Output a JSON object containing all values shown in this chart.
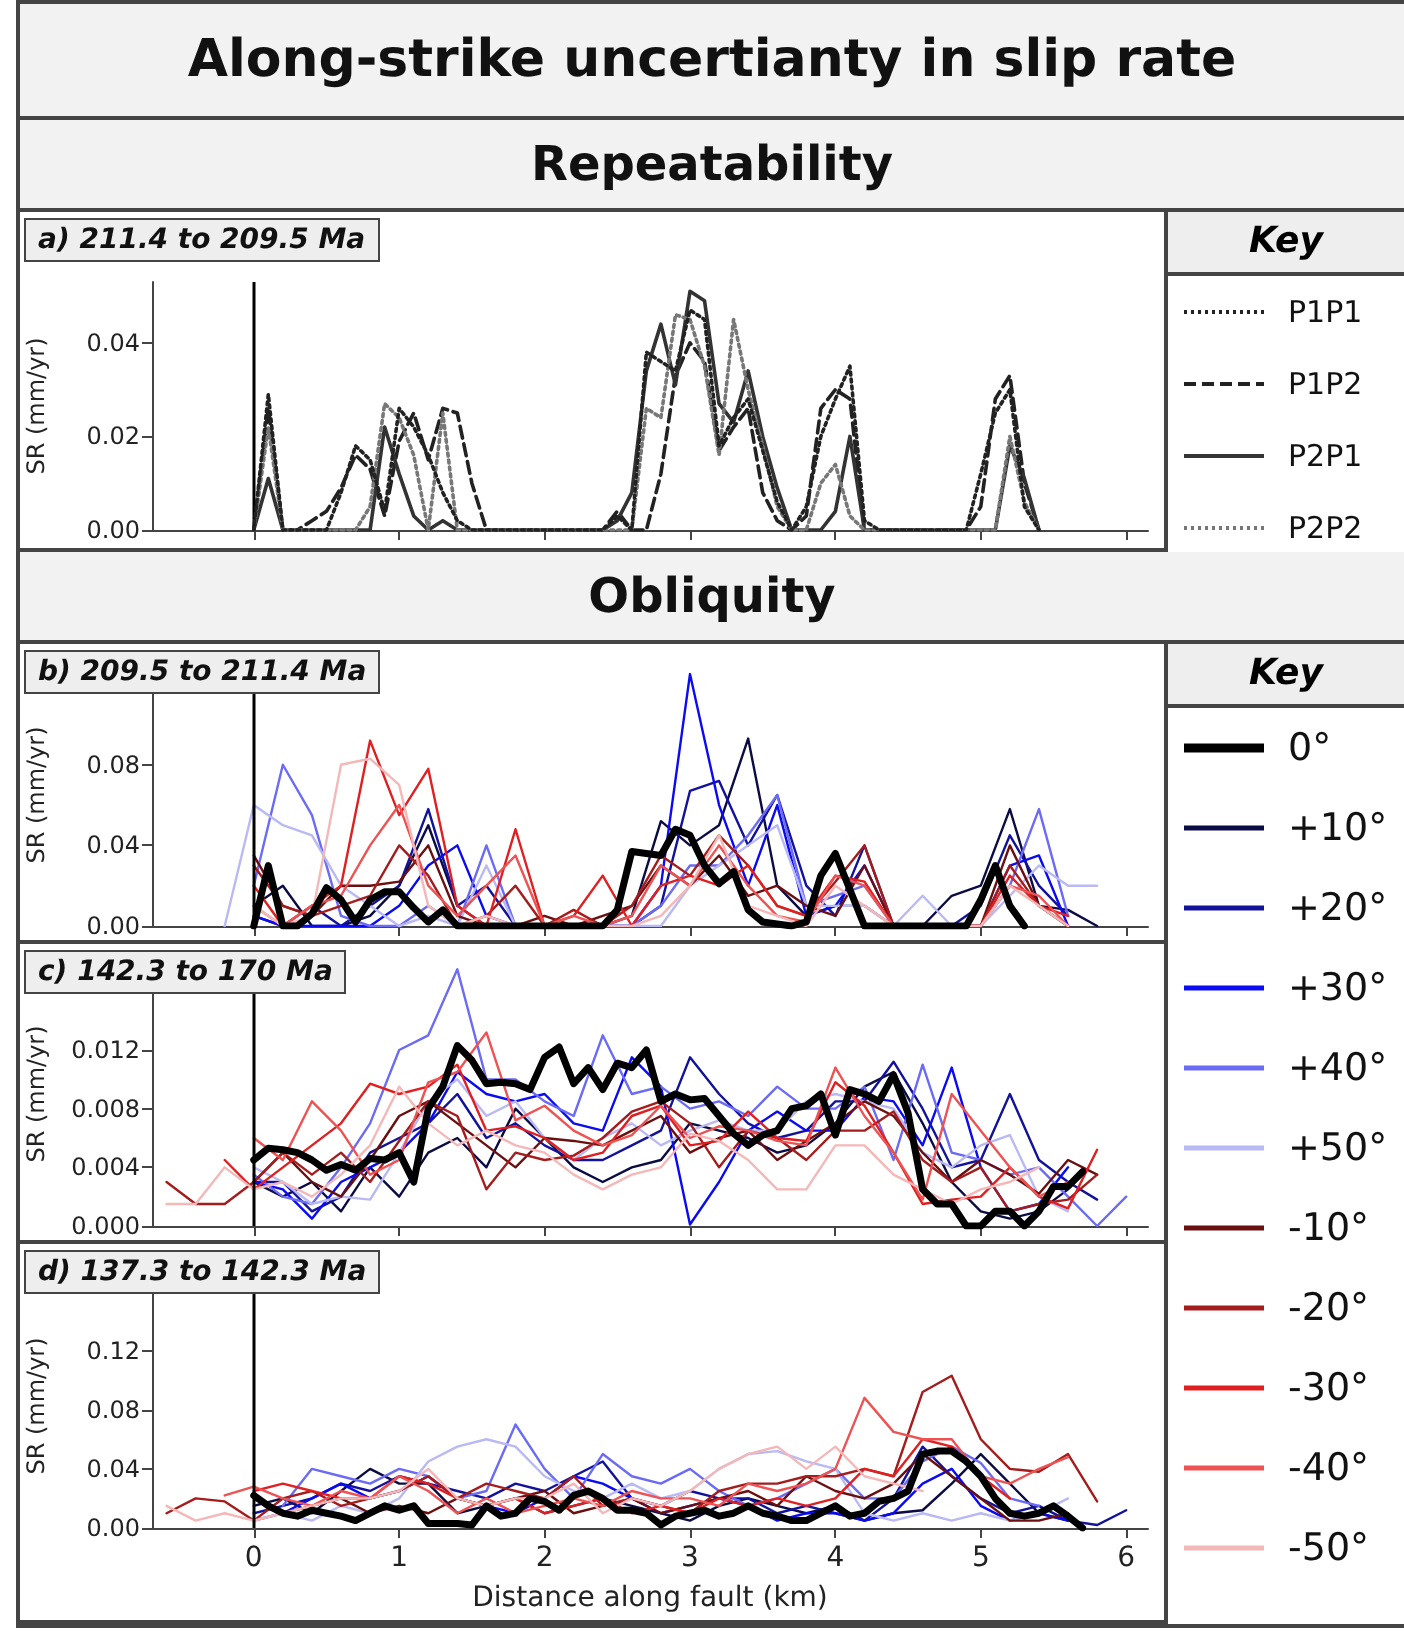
{
  "chart_data": [
    {
      "type": "line",
      "title": "a) 211.4 to 209.5 Ma",
      "ylabel": "SR (mm/yr)",
      "legend_title": "Key",
      "annotations": [
        "Along-strike uncertianty in slip rate",
        "Repeatability"
      ],
      "legend": "right",
      "grid": false,
      "tick_labels": "y",
      "x": [
        0,
        0.1,
        0.2,
        0.3,
        0.4,
        0.5,
        0.6,
        0.7,
        0.8,
        0.9,
        1,
        1.1,
        1.2,
        1.3,
        1.4,
        1.5,
        1.6,
        1.7,
        1.8,
        1.9,
        2,
        2.1,
        2.2,
        2.3,
        2.4,
        2.5,
        2.6,
        2.7,
        2.8,
        2.9,
        3,
        3.1,
        3.2,
        3.3,
        3.4,
        3.5,
        3.6,
        3.7,
        3.8,
        3.9,
        4,
        4.1,
        4.2,
        4.3,
        4.4,
        4.5,
        4.6,
        4.7,
        4.8,
        4.9,
        5,
        5.1,
        5.2,
        5.3,
        5.4
      ],
      "xlim": [
        -0.7,
        6.15
      ],
      "xticks": [
        0,
        1,
        2,
        3,
        4,
        5,
        6
      ],
      "ylim": [
        0,
        0.053
      ],
      "yticks": [
        {
          "value": 0,
          "label": "0.00"
        },
        {
          "value": 0.02,
          "label": "0.02"
        },
        {
          "value": 0.04,
          "label": "0.04"
        }
      ],
      "ref_lines": [
        {
          "axis": "x",
          "value": 0,
          "color": "#000000"
        }
      ],
      "series": [
        {
          "name": "P1P1",
          "color": "#222222",
          "line_style": "dotted",
          "values": [
            0,
            0.029,
            0,
            0,
            0,
            0,
            0.008,
            0.018,
            0.015,
            0.004,
            0.026,
            0.022,
            0.016,
            0.008,
            0.002,
            0,
            0,
            0,
            0,
            0,
            0,
            0,
            0,
            0,
            0,
            0.003,
            0,
            0.038,
            0.036,
            0.034,
            0.047,
            0.045,
            0.018,
            0.024,
            0.028,
            0.017,
            0.006,
            0,
            0.005,
            0.02,
            0.028,
            0.035,
            0.002,
            0,
            0,
            0,
            0,
            0,
            0,
            0,
            0.012,
            0.025,
            0.03,
            0.005,
            0
          ]
        },
        {
          "name": "P1P2",
          "color": "#222222",
          "line_style": "dashed",
          "values": [
            0,
            0.026,
            0,
            0,
            0.002,
            0.004,
            0.009,
            0.016,
            0.013,
            0.003,
            0.019,
            0.025,
            0.015,
            0.026,
            0.025,
            0.01,
            0,
            0,
            0,
            0,
            0,
            0,
            0,
            0,
            0,
            0.004,
            0,
            0,
            0.012,
            0.033,
            0.04,
            0.036,
            0.017,
            0.022,
            0.026,
            0.008,
            0.002,
            0,
            0.003,
            0.026,
            0.03,
            0.028,
            0,
            0,
            0,
            0,
            0,
            0,
            0,
            0,
            0.005,
            0.028,
            0.033,
            0.01,
            0
          ]
        },
        {
          "name": "P2P1",
          "color": "#333333",
          "line_style": "solid",
          "values": [
            0,
            0.011,
            0,
            0,
            0,
            0,
            0,
            0,
            0,
            0.022,
            0.012,
            0.003,
            0,
            0.002,
            0,
            0,
            0,
            0,
            0,
            0,
            0,
            0,
            0,
            0,
            0,
            0.002,
            0.008,
            0.034,
            0.044,
            0.031,
            0.051,
            0.049,
            0.027,
            0.023,
            0.034,
            0.02,
            0.009,
            0,
            0,
            0,
            0.004,
            0.02,
            0,
            0,
            0,
            0,
            0,
            0,
            0,
            0,
            0,
            0,
            0.018,
            0.011,
            0
          ]
        },
        {
          "name": "P2P2",
          "color": "#777777",
          "line_style": "dotted",
          "values": [
            0,
            0.022,
            0,
            0,
            0,
            0,
            0,
            0,
            0.005,
            0.027,
            0.024,
            0.016,
            0,
            0.025,
            0,
            0,
            0,
            0,
            0,
            0,
            0,
            0,
            0,
            0,
            0,
            0,
            0,
            0.026,
            0.024,
            0.046,
            0.045,
            0.035,
            0.016,
            0.045,
            0.03,
            0.018,
            0.005,
            0,
            0,
            0.01,
            0.014,
            0.003,
            0,
            0,
            0,
            0,
            0,
            0,
            0,
            0,
            0,
            0,
            0.02,
            0.006,
            0
          ]
        }
      ]
    },
    {
      "type": "line",
      "title": "b) 209.5 to 211.4 Ma",
      "ylabel": "SR (mm/yr)",
      "legend_title": "Key",
      "annotations": [
        "Obliquity"
      ],
      "legend": "right",
      "grid": false,
      "tick_labels": "y",
      "x": [
        -0.2,
        0,
        0.2,
        0.4,
        0.6,
        0.8,
        1,
        1.2,
        1.4,
        1.6,
        1.8,
        2,
        2.2,
        2.4,
        2.6,
        2.8,
        3,
        3.2,
        3.4,
        3.6,
        3.8,
        4,
        4.2,
        4.4,
        4.6,
        4.8,
        5,
        5.2,
        5.4,
        5.6,
        5.8
      ],
      "xlim": [
        -0.7,
        6.15
      ],
      "xticks": [
        0,
        1,
        2,
        3,
        4,
        5,
        6
      ],
      "ylim": [
        0,
        0.13
      ],
      "yticks": [
        {
          "value": 0,
          "label": "0.00"
        },
        {
          "value": 0.04,
          "label": "0.04"
        },
        {
          "value": 0.08,
          "label": "0.08"
        }
      ],
      "ref_lines": [
        {
          "axis": "x",
          "value": 0,
          "color": "#000000"
        }
      ],
      "series": [
        {
          "name": "0°",
          "color": "#000000",
          "x": [
            0,
            0.1,
            0.2,
            0.3,
            0.4,
            0.5,
            0.6,
            0.7,
            0.8,
            0.9,
            1,
            1.1,
            1.2,
            1.3,
            1.4,
            1.5,
            1.6,
            1.7,
            1.8,
            1.9,
            2,
            2.1,
            2.2,
            2.3,
            2.4,
            2.5,
            2.6,
            2.7,
            2.8,
            2.9,
            3,
            3.1,
            3.2,
            3.3,
            3.4,
            3.5,
            3.6,
            3.7,
            3.8,
            3.9,
            4,
            4.1,
            4.2,
            4.3,
            4.4,
            4.5,
            4.6,
            4.7,
            4.8,
            4.9,
            5,
            5.1,
            5.2,
            5.3
          ],
          "values": [
            0,
            0.03,
            0,
            0,
            0.006,
            0.019,
            0.013,
            0.002,
            0.013,
            0.017,
            0.017,
            0.009,
            0.002,
            0.008,
            0,
            0,
            0,
            0,
            0,
            0,
            0,
            0,
            0,
            0,
            0,
            0.008,
            0.037,
            0.036,
            0.035,
            0.048,
            0.045,
            0.03,
            0.021,
            0.027,
            0.008,
            0.002,
            0.001,
            0,
            0.002,
            0.025,
            0.036,
            0.018,
            0,
            0,
            0,
            0,
            0,
            0,
            0,
            0,
            0.013,
            0.03,
            0.01,
            0
          ]
        },
        {
          "name": "+10°",
          "color": "#0b0b45",
          "values": [
            null,
            0.01,
            0.02,
            0,
            0,
            0.005,
            0.02,
            0.05,
            0.01,
            0,
            0,
            0,
            0,
            0,
            0.005,
            0.052,
            0.04,
            0.05,
            0.093,
            0.02,
            0.005,
            0.01,
            0.01,
            0,
            0,
            0.015,
            0.02,
            0.058,
            0.01,
            0.008,
            0
          ]
        },
        {
          "name": "+20°",
          "color": "#12129a",
          "values": [
            null,
            0.005,
            0,
            0.01,
            0,
            0.01,
            0.02,
            0.058,
            0.01,
            0.02,
            0,
            0,
            0,
            0,
            0,
            0.01,
            0.067,
            0.072,
            0.04,
            0.065,
            0.02,
            0.005,
            0.04,
            0,
            0,
            0,
            0.01,
            0.045,
            0.02,
            0.005,
            null
          ]
        },
        {
          "name": "+30°",
          "color": "#0a0af5",
          "values": [
            null,
            0.005,
            0,
            0,
            0,
            0,
            0.01,
            0.03,
            0.04,
            0.005,
            0,
            0,
            0,
            0,
            0,
            0.02,
            0.125,
            0.06,
            0.02,
            0.06,
            0.005,
            0.01,
            0.03,
            0,
            0,
            0,
            0,
            0.03,
            0.035,
            0,
            null
          ]
        },
        {
          "name": "+40°",
          "color": "#6b6bf5",
          "values": [
            null,
            0.02,
            0.08,
            0.055,
            0.005,
            0,
            0,
            0.01,
            0,
            0.04,
            0,
            0,
            0,
            0,
            0,
            0.01,
            0.03,
            0.03,
            0.045,
            0.065,
            0.01,
            0.015,
            0.02,
            0,
            0,
            0,
            0,
            0.02,
            0.058,
            0.005,
            null
          ]
        },
        {
          "name": "+50°",
          "color": "#b9b9f5",
          "values": [
            0,
            0.06,
            0.05,
            0.045,
            0.02,
            0.01,
            0,
            0.005,
            0,
            0.03,
            0,
            0,
            0,
            0,
            0,
            0,
            0.02,
            0.03,
            0.04,
            0.05,
            0.01,
            0.01,
            0.01,
            0,
            0.015,
            0,
            0,
            0.015,
            0.03,
            0.02,
            0.02
          ]
        },
        {
          "name": "-10°",
          "color": "#6b1010",
          "values": [
            null,
            0.035,
            0.01,
            0.005,
            0.02,
            0.02,
            0.022,
            0.04,
            0.005,
            0,
            0,
            0.005,
            0,
            0.005,
            0.01,
            0.03,
            0.02,
            0.035,
            0.015,
            0.02,
            0.01,
            0.005,
            0.03,
            0,
            0,
            0,
            0,
            0.04,
            0.01,
            0,
            null
          ]
        },
        {
          "name": "-20°",
          "color": "#a51c1c",
          "values": [
            null,
            0.03,
            0.01,
            0.005,
            0.01,
            0.015,
            0.04,
            0.025,
            0,
            0.005,
            0.02,
            0,
            0.008,
            0,
            0.01,
            0.035,
            0.025,
            0.045,
            0.03,
            0.01,
            0.005,
            0.022,
            0.04,
            0,
            0,
            0,
            0,
            0.03,
            0.01,
            0,
            null
          ]
        },
        {
          "name": "-30°",
          "color": "#e02020",
          "values": [
            null,
            0.02,
            0,
            0.01,
            0.02,
            0.092,
            0.055,
            0.078,
            0.01,
            0,
            0.048,
            0,
            0.005,
            0.025,
            0,
            0.02,
            0.025,
            0.02,
            0.03,
            0.01,
            0.005,
            0.025,
            0.022,
            0,
            0,
            0,
            0,
            0.025,
            0.01,
            0.005,
            null
          ]
        },
        {
          "name": "-40°",
          "color": "#ee5252",
          "values": [
            null,
            0.01,
            0,
            0.01,
            0.015,
            0.04,
            0.06,
            0.02,
            0.005,
            0.02,
            0.035,
            0,
            0.005,
            0,
            0.005,
            0.03,
            0.02,
            0.04,
            0.02,
            0.005,
            0.002,
            0.025,
            0.02,
            0,
            0,
            0,
            0,
            0.02,
            0.015,
            0,
            null
          ]
        },
        {
          "name": "-50°",
          "color": "#f4b8b8",
          "values": [
            null,
            0.01,
            0,
            0.005,
            0.08,
            0.083,
            0.07,
            0.01,
            0,
            0.005,
            0,
            0,
            0,
            0,
            0,
            0.005,
            0.02,
            0.045,
            0.01,
            0.005,
            0,
            0.02,
            0.01,
            0,
            0,
            0,
            0,
            0.02,
            0.01,
            0,
            null
          ]
        }
      ]
    },
    {
      "type": "line",
      "title": "c) 142.3 to 170 Ma",
      "ylabel": "SR (mm/yr)",
      "grid": false,
      "tick_labels": "y",
      "x": [
        -0.6,
        -0.4,
        -0.2,
        0,
        0.2,
        0.4,
        0.6,
        0.8,
        1,
        1.2,
        1.4,
        1.6,
        1.8,
        2,
        2.2,
        2.4,
        2.6,
        2.8,
        3,
        3.2,
        3.4,
        3.6,
        3.8,
        4,
        4.2,
        4.4,
        4.6,
        4.8,
        5,
        5.2,
        5.4,
        5.6,
        5.8,
        6
      ],
      "xlim": [
        -0.7,
        6.15
      ],
      "xticks": [
        0,
        1,
        2,
        3,
        4,
        5,
        6
      ],
      "ylim": [
        0,
        0.018
      ],
      "yticks": [
        {
          "value": 0,
          "label": "0.000"
        },
        {
          "value": 0.004,
          "label": "0.004"
        },
        {
          "value": 0.008,
          "label": "0.008"
        },
        {
          "value": 0.012,
          "label": "0.012"
        }
      ],
      "ref_lines": [
        {
          "axis": "x",
          "value": 0,
          "color": "#000000"
        }
      ],
      "series": [
        {
          "color": "#000000",
          "x": [
            0,
            0.1,
            0.2,
            0.3,
            0.4,
            0.5,
            0.6,
            0.7,
            0.8,
            0.9,
            1,
            1.1,
            1.2,
            1.3,
            1.4,
            1.5,
            1.6,
            1.7,
            1.8,
            1.9,
            2,
            2.1,
            2.2,
            2.3,
            2.4,
            2.5,
            2.6,
            2.7,
            2.8,
            2.9,
            3,
            3.1,
            3.2,
            3.3,
            3.4,
            3.5,
            3.6,
            3.7,
            3.8,
            3.9,
            4,
            4.1,
            4.2,
            4.3,
            4.4,
            4.5,
            4.6,
            4.7,
            4.8,
            4.9,
            5,
            5.1,
            5.2,
            5.3,
            5.4,
            5.5,
            5.6,
            5.7
          ],
          "values": [
            0.0045,
            0.0053,
            0.0052,
            0.005,
            0.0045,
            0.0038,
            0.0042,
            0.0038,
            0.0046,
            0.0045,
            0.005,
            0.003,
            0.008,
            0.0095,
            0.0123,
            0.0113,
            0.0097,
            0.0098,
            0.0097,
            0.0093,
            0.0115,
            0.0122,
            0.0097,
            0.0108,
            0.0093,
            0.0111,
            0.0108,
            0.012,
            0.0085,
            0.009,
            0.0086,
            0.0087,
            0.0075,
            0.0063,
            0.0055,
            0.0062,
            0.0065,
            0.008,
            0.0082,
            0.009,
            0.0062,
            0.0093,
            0.009,
            0.0085,
            0.0103,
            0.0077,
            0.0025,
            0.0015,
            0.0015,
            0,
            0,
            0.001,
            0.001,
            0,
            0.001,
            0.0027,
            0.0027,
            0.0037
          ]
        },
        {
          "color": "#0b0b45",
          "values": [
            null,
            null,
            null,
            0.003,
            0.002,
            0.003,
            0.001,
            0.004,
            0.002,
            0.005,
            0.006,
            0.004,
            0.008,
            0.006,
            0.004,
            0.003,
            0.004,
            0.0045,
            0.007,
            0.0065,
            0.006,
            0.005,
            0.0055,
            0.007,
            0.0095,
            0.0105,
            0.007,
            0.003,
            0.001,
            0.0005,
            0.001,
            0.0025,
            null,
            null
          ]
        },
        {
          "color": "#12129a",
          "values": [
            null,
            null,
            null,
            0.003,
            0.003,
            0.001,
            0.002,
            0.005,
            0.006,
            0.007,
            0.009,
            0.006,
            0.007,
            0.0055,
            0.0045,
            0.0045,
            0.0055,
            0.0065,
            0.0115,
            0.009,
            0.007,
            0.006,
            0.0065,
            0.0085,
            0.0085,
            0.0112,
            0.008,
            0.004,
            0.0045,
            0.009,
            0.0045,
            0.003,
            0.0018,
            null
          ]
        },
        {
          "color": "#0a0af5",
          "values": [
            null,
            null,
            null,
            0.003,
            0.0025,
            0.0005,
            0.003,
            0.004,
            0.005,
            0.007,
            0.0105,
            0.009,
            0.0085,
            0.009,
            0.007,
            0.0065,
            0.0115,
            0.0095,
            0.0001,
            0.003,
            0.0065,
            0.0078,
            0.0065,
            0.0065,
            0.0088,
            0.0085,
            0.0055,
            0.0108,
            0.004,
            0.001,
            0.0015,
            0.004,
            null,
            null
          ]
        },
        {
          "color": "#6b6bf5",
          "values": [
            null,
            null,
            null,
            0.0035,
            0.002,
            0.0015,
            0.004,
            0.007,
            0.012,
            0.013,
            0.0175,
            0.01,
            0.01,
            0.0085,
            0.0075,
            0.013,
            0.009,
            0.0095,
            0.008,
            0.0085,
            0.0075,
            0.0095,
            0.008,
            0.008,
            0.0095,
            0.0045,
            0.011,
            0.005,
            0.0045,
            0.0035,
            0.004,
            0.002,
            0,
            0.002
          ]
        },
        {
          "color": "#b9b9f5",
          "values": [
            null,
            null,
            null,
            0.004,
            0.003,
            0.0015,
            0.002,
            0.0018,
            0.005,
            0.0085,
            0.01,
            0.0075,
            0.0085,
            0.006,
            0.0045,
            0.006,
            0.007,
            0.0055,
            0.0065,
            0.0072,
            0.0065,
            0.0065,
            0.0085,
            0.009,
            0.0085,
            0.008,
            0.005,
            0.004,
            0.0055,
            0.0062,
            0.002,
            0.001,
            null,
            null
          ]
        },
        {
          "color": "#6b1010",
          "values": [
            null,
            null,
            null,
            0.003,
            0.005,
            0.003,
            0.002,
            0.0045,
            0.0075,
            0.0085,
            0.007,
            0.0055,
            0.004,
            0.006,
            0.0058,
            0.0055,
            0.0065,
            0.0075,
            0.005,
            0.006,
            0.0065,
            0.0045,
            0.0058,
            0.007,
            0.0085,
            0.0075,
            0.005,
            0.003,
            0.0045,
            0.0035,
            0.0022,
            0.0045,
            0.0035,
            null
          ]
        },
        {
          "color": "#a51c1c",
          "values": [
            0.003,
            0.0015,
            0.0015,
            0.003,
            0.005,
            0.0035,
            0.005,
            0.003,
            0.0058,
            0.0085,
            0.0075,
            0.0025,
            0.005,
            0.0045,
            0.0048,
            0.006,
            0.0078,
            0.0085,
            0.007,
            0.004,
            0.0065,
            0.006,
            0.0045,
            0.0065,
            0.0065,
            0.0078,
            0.0045,
            0.003,
            0.004,
            0.001,
            0.0015,
            0.0018,
            0.0035,
            null
          ]
        },
        {
          "color": "#e02020",
          "values": [
            null,
            null,
            0.0045,
            0.0025,
            0.004,
            0.0055,
            0.007,
            0.0097,
            0.009,
            0.0095,
            0.011,
            0.0065,
            0.0068,
            0.006,
            0.0045,
            0.005,
            0.0075,
            0.0082,
            0.0055,
            0.0058,
            0.0078,
            0.006,
            0.0058,
            0.0098,
            0.0082,
            0.005,
            0.0015,
            0.0018,
            0.002,
            0.004,
            0.002,
            0.0012,
            0.0052,
            null
          ]
        },
        {
          "color": "#ee5252",
          "values": [
            null,
            null,
            null,
            0.006,
            0.0045,
            0.0085,
            0.0065,
            0.0035,
            0.0045,
            0.0098,
            0.0105,
            0.0132,
            0.0072,
            0.0082,
            0.0065,
            0.0055,
            0.0062,
            0.0082,
            0.006,
            0.0068,
            0.0065,
            0.0058,
            0.0055,
            0.0108,
            0.0075,
            0.005,
            0.0018,
            0.009,
            0.0065,
            0.004,
            0.002,
            0.003,
            null,
            null
          ]
        },
        {
          "color": "#f4b8b8",
          "values": [
            0.0015,
            0.0015,
            0.004,
            0.0025,
            0.003,
            0.002,
            0.0035,
            0.0055,
            0.0095,
            0.007,
            0.0055,
            0.0065,
            0.0055,
            0.005,
            0.0035,
            0.0025,
            0.0035,
            0.004,
            0.0063,
            0.0058,
            0.0045,
            0.0025,
            0.0025,
            0.0055,
            0.0055,
            0.0035,
            0.0025,
            0.0015,
            0.0025,
            0.003,
            0.004,
            null,
            null,
            null
          ]
        }
      ]
    },
    {
      "type": "line",
      "title": "d) 137.3 to 142.3 Ma",
      "xlabel": "Distance along fault (km)",
      "ylabel": "SR (mm/yr)",
      "grid": false,
      "x": [
        -0.6,
        -0.4,
        -0.2,
        0,
        0.2,
        0.4,
        0.6,
        0.8,
        1,
        1.2,
        1.4,
        1.6,
        1.8,
        2,
        2.2,
        2.4,
        2.6,
        2.8,
        3,
        3.2,
        3.4,
        3.6,
        3.8,
        4,
        4.2,
        4.4,
        4.6,
        4.8,
        5,
        5.2,
        5.4,
        5.6,
        5.8,
        6
      ],
      "xlim": [
        -0.7,
        6.15
      ],
      "xticks": [
        0,
        1,
        2,
        3,
        4,
        5,
        6
      ],
      "ylim": [
        0,
        0.165
      ],
      "yticks": [
        {
          "value": 0,
          "label": "0.00"
        },
        {
          "value": 0.04,
          "label": "0.04"
        },
        {
          "value": 0.08,
          "label": "0.08"
        },
        {
          "value": 0.12,
          "label": "0.12"
        }
      ],
      "ref_lines": [
        {
          "axis": "x",
          "value": 0,
          "color": "#000000"
        }
      ],
      "series": [
        {
          "color": "#000000",
          "x": [
            0,
            0.1,
            0.2,
            0.3,
            0.4,
            0.5,
            0.6,
            0.7,
            0.8,
            0.9,
            1,
            1.1,
            1.2,
            1.3,
            1.4,
            1.5,
            1.6,
            1.7,
            1.8,
            1.9,
            2,
            2.1,
            2.2,
            2.3,
            2.4,
            2.5,
            2.6,
            2.7,
            2.8,
            2.9,
            3,
            3.1,
            3.2,
            3.3,
            3.4,
            3.5,
            3.6,
            3.7,
            3.8,
            3.9,
            4,
            4.1,
            4.2,
            4.3,
            4.4,
            4.5,
            4.6,
            4.7,
            4.8,
            4.9,
            5,
            5.1,
            5.2,
            5.3,
            5.4,
            5.5,
            5.6,
            5.7
          ],
          "values": [
            0.022,
            0.015,
            0.01,
            0.008,
            0.012,
            0.01,
            0.008,
            0.005,
            0.01,
            0.015,
            0.012,
            0.015,
            0.003,
            0.003,
            0.003,
            0.002,
            0.015,
            0.008,
            0.01,
            0.02,
            0.018,
            0.012,
            0.022,
            0.025,
            0.02,
            0.012,
            0.012,
            0.01,
            0.002,
            0.008,
            0.01,
            0.012,
            0.008,
            0.01,
            0.015,
            0.01,
            0.008,
            0.005,
            0.005,
            0.01,
            0.015,
            0.008,
            0.01,
            0.018,
            0.02,
            0.025,
            0.05,
            0.052,
            0.052,
            0.045,
            0.035,
            0.02,
            0.01,
            0.008,
            0.01,
            0.015,
            0.008,
            0
          ]
        },
        {
          "color": "#0b0b45",
          "values": [
            null,
            null,
            null,
            0.015,
            0.02,
            0.01,
            0.025,
            0.04,
            0.03,
            0.03,
            0.01,
            0.015,
            0.02,
            0.01,
            0.015,
            0.02,
            0.015,
            0.01,
            0.005,
            0.015,
            0.02,
            0.015,
            0.01,
            0.015,
            0.005,
            0.01,
            0.012,
            0.03,
            0.05,
            0.03,
            0.01,
            0.005,
            null,
            null
          ]
        },
        {
          "color": "#12129a",
          "values": [
            null,
            null,
            null,
            0.01,
            0.015,
            0.02,
            0.03,
            0.025,
            0.035,
            0.03,
            0.025,
            0.02,
            0.03,
            0.025,
            0.035,
            0.045,
            0.02,
            0.015,
            0.025,
            0.02,
            0.02,
            0.01,
            0.015,
            0.01,
            0.005,
            0.02,
            0.055,
            0.035,
            0.02,
            0.01,
            0.015,
            0.005,
            0.002,
            0.012
          ]
        },
        {
          "color": "#0a0af5",
          "values": [
            null,
            null,
            null,
            0.005,
            0.01,
            0.02,
            0.03,
            0.02,
            0.025,
            0.035,
            0.02,
            0.015,
            0.01,
            0.02,
            0.035,
            0.03,
            0.02,
            0.01,
            0.015,
            0.02,
            0.015,
            0.005,
            0.01,
            0.01,
            0.005,
            0.01,
            0.03,
            0.04,
            0.015,
            0.005,
            0.01,
            0.005,
            null,
            null
          ]
        },
        {
          "color": "#6b6bf5",
          "values": [
            null,
            null,
            null,
            null,
            0.015,
            0.04,
            0.035,
            0.03,
            0.04,
            0.035,
            0.02,
            0.025,
            0.07,
            0.04,
            0.02,
            0.05,
            0.035,
            0.03,
            0.04,
            0.025,
            0.015,
            0.02,
            0.03,
            0.04,
            0.02,
            0.02,
            0.045,
            0.055,
            0.044,
            0.02,
            0.015,
            null,
            null,
            null
          ]
        },
        {
          "color": "#b9b9f5",
          "values": [
            null,
            null,
            null,
            0.005,
            0.01,
            0.005,
            0.015,
            0.01,
            0.02,
            0.045,
            0.055,
            0.06,
            0.055,
            0.035,
            0.025,
            0.02,
            0.03,
            0.02,
            0.025,
            0.04,
            0.05,
            0.052,
            0.045,
            0.04,
            0.01,
            0.005,
            0.01,
            0.005,
            0.01,
            0.005,
            0.01,
            0.02,
            null,
            null
          ]
        },
        {
          "color": "#6b1010",
          "values": [
            null,
            null,
            null,
            0.02,
            0.01,
            0.015,
            0.02,
            0.01,
            0.015,
            0.01,
            0.02,
            0.015,
            0.02,
            0.025,
            0.01,
            0.015,
            0.02,
            0.01,
            0.015,
            0.02,
            0.025,
            0.015,
            0.035,
            0.025,
            0.02,
            0.03,
            0.05,
            0.035,
            0.02,
            0.005,
            0.005,
            0.01,
            null,
            null
          ]
        },
        {
          "color": "#a51c1c",
          "values": [
            0.01,
            0.02,
            0.018,
            0.005,
            0.02,
            0.025,
            0.015,
            0.02,
            0.025,
            0.035,
            0.02,
            0.03,
            0.025,
            0.02,
            0.035,
            0.015,
            0.02,
            0.015,
            0.01,
            0.025,
            0.03,
            0.03,
            0.035,
            0.035,
            0.04,
            0.035,
            0.092,
            0.103,
            0.06,
            0.04,
            0.038,
            0.05,
            0.018,
            null
          ]
        },
        {
          "color": "#e02020",
          "values": [
            null,
            null,
            null,
            0.025,
            0.03,
            0.025,
            0.02,
            0.02,
            0.035,
            0.03,
            0.02,
            0.015,
            0.02,
            0.01,
            0.015,
            0.02,
            0.01,
            0.015,
            0.01,
            0.02,
            0.015,
            0.02,
            0.015,
            0.02,
            0.04,
            0.035,
            0.06,
            0.055,
            0.035,
            0.02,
            null,
            null,
            null,
            null
          ]
        },
        {
          "color": "#ee5252",
          "values": [
            null,
            null,
            0.022,
            0.028,
            0.02,
            0.015,
            0.025,
            0.02,
            0.035,
            0.025,
            0.01,
            0.02,
            0.01,
            0.015,
            0.02,
            0.015,
            0.025,
            0.02,
            0.02,
            0.015,
            0.03,
            0.025,
            0.03,
            0.04,
            0.088,
            0.065,
            0.06,
            0.06,
            0.035,
            0.03,
            0.04,
            0.048,
            null,
            null
          ]
        },
        {
          "color": "#f4b8b8",
          "values": [
            0.015,
            0.005,
            0.01,
            0.005,
            0.01,
            0.015,
            0.02,
            0.02,
            0.025,
            0.04,
            0.02,
            0.015,
            0.02,
            0.02,
            0.03,
            0.01,
            0.02,
            0.015,
            0.025,
            0.04,
            0.05,
            0.055,
            0.04,
            0.055,
            0.035,
            0.03,
            0.025,
            null,
            null,
            null,
            null,
            null,
            null,
            null
          ]
        }
      ]
    }
  ]
}
